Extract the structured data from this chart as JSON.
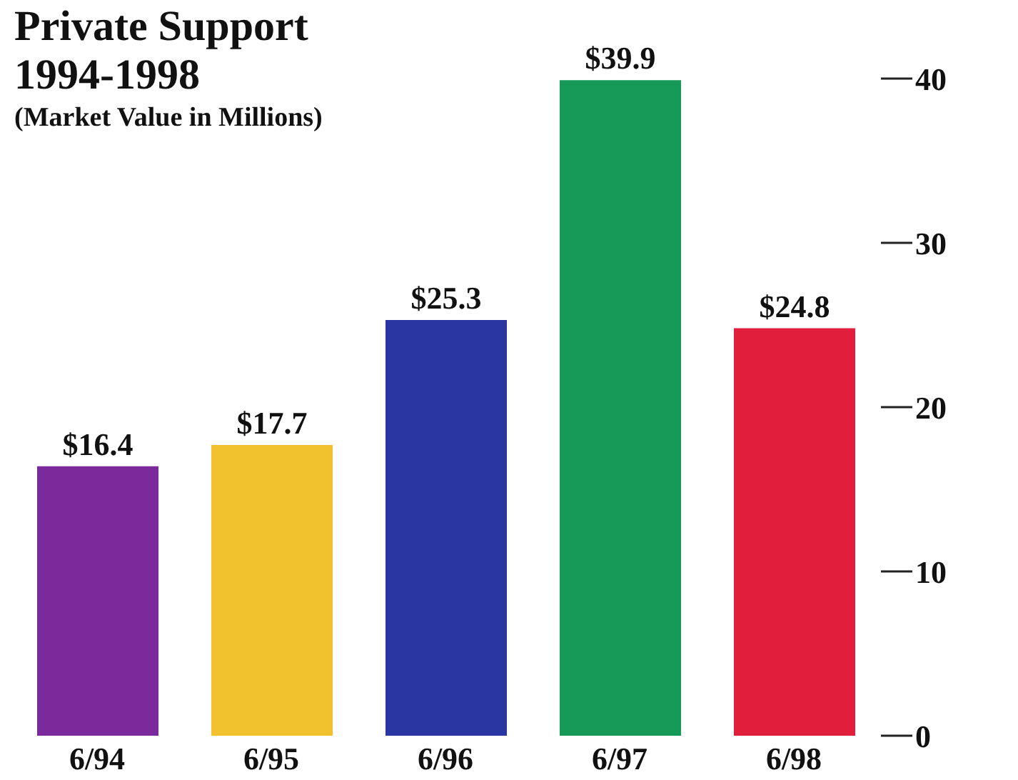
{
  "chart_data": {
    "type": "bar",
    "title": "Private Support\n1994-1998",
    "subtitle": "(Market Value in Millions)",
    "categories": [
      "6/94",
      "6/95",
      "6/96",
      "6/97",
      "6/98"
    ],
    "values": [
      16.4,
      17.7,
      25.3,
      39.9,
      24.8
    ],
    "colors": [
      "#7b2a9c",
      "#f2c12e",
      "#2a37a3",
      "#179a57",
      "#e01f3d"
    ],
    "value_labels": [
      "$16.4",
      "$17.7",
      "$25.3",
      "$39.9",
      "$24.8"
    ],
    "ylim": [
      0,
      40
    ],
    "yticks": [
      0,
      10,
      20,
      30,
      40
    ],
    "grid": false,
    "legend": false
  }
}
